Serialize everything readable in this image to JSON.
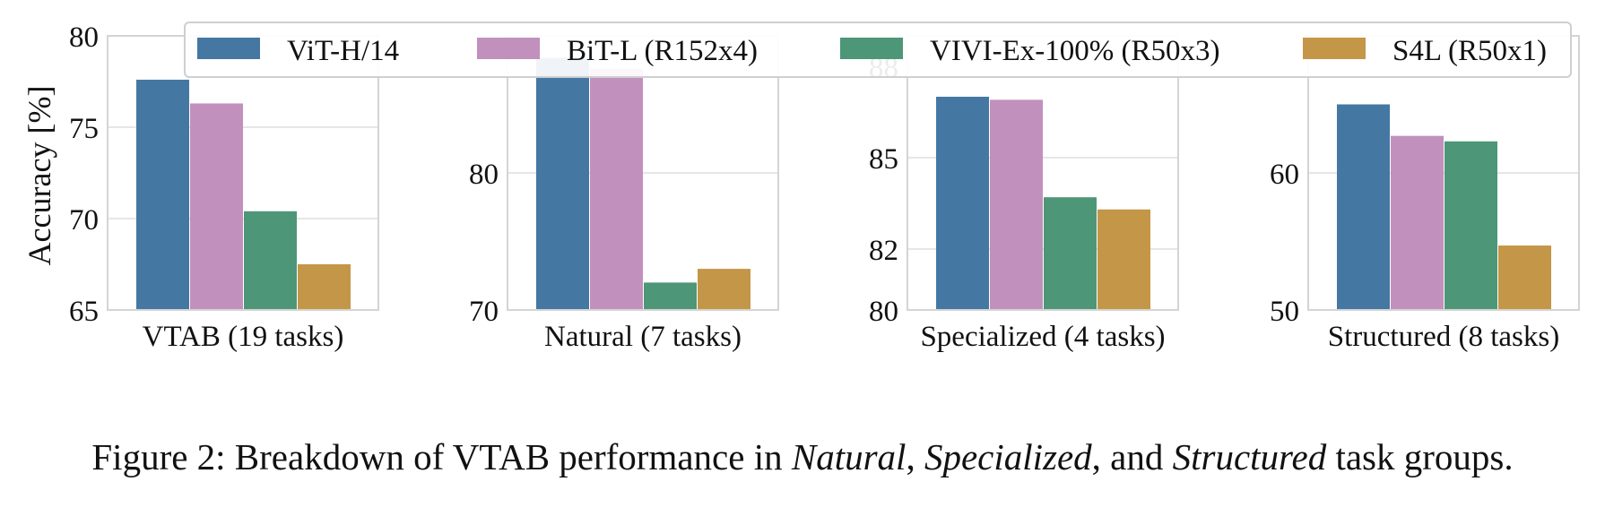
{
  "figure": {
    "ylabel": "Accuracy [%]",
    "caption": {
      "prefix": "Figure 2: Breakdown of VTAB performance in ",
      "em1": "Natural",
      "sep1": ", ",
      "em2": "Specialized",
      "sep2": ", and ",
      "em3": "Structured",
      "suffix": " task groups."
    },
    "colors": {
      "ViT-H/14": "#4478a3",
      "BiT-L (R152x4)": "#c190bc",
      "VIVI-Ex-100% (R50x3)": "#4d9677",
      "S4L (R50x1)": "#c49648"
    },
    "legend_placement": "top, spanning panels"
  },
  "chart_data": [
    {
      "type": "bar",
      "xlabel": "VTAB (19 tasks)",
      "ylabel": "Accuracy [%]",
      "ylim": [
        65,
        80
      ],
      "yticks": [
        65,
        70,
        75,
        80
      ],
      "grid": true,
      "series": [
        {
          "name": "ViT-H/14",
          "values": [
            77.6
          ]
        },
        {
          "name": "BiT-L (R152x4)",
          "values": [
            76.3
          ]
        },
        {
          "name": "VIVI-Ex-100% (R50x3)",
          "values": [
            70.4
          ]
        },
        {
          "name": "S4L (R50x1)",
          "values": [
            67.5
          ]
        }
      ]
    },
    {
      "type": "bar",
      "xlabel": "Natural (7 tasks)",
      "ylim": [
        70,
        90
      ],
      "yticks": [
        70,
        80
      ],
      "grid": true,
      "series": [
        {
          "name": "ViT-H/14",
          "values": [
            88.4
          ]
        },
        {
          "name": "BiT-L (R152x4)",
          "values": [
            87.6
          ]
        },
        {
          "name": "VIVI-Ex-100% (R50x3)",
          "values": [
            72.0
          ]
        },
        {
          "name": "S4L (R50x1)",
          "values": [
            73.0
          ]
        }
      ]
    },
    {
      "type": "bar",
      "xlabel": "Specialized (4 tasks)",
      "ylim": [
        80,
        89
      ],
      "yticks": [
        80,
        82,
        85,
        88
      ],
      "grid": true,
      "series": [
        {
          "name": "ViT-H/14",
          "values": [
            87.0
          ]
        },
        {
          "name": "BiT-L (R152x4)",
          "values": [
            86.9
          ]
        },
        {
          "name": "VIVI-Ex-100% (R50x3)",
          "values": [
            83.7
          ]
        },
        {
          "name": "S4L (R50x1)",
          "values": [
            83.3
          ]
        }
      ]
    },
    {
      "type": "bar",
      "xlabel": "Structured (8 tasks)",
      "ylim": [
        50,
        70
      ],
      "yticks": [
        50,
        60
      ],
      "grid": true,
      "series": [
        {
          "name": "ViT-H/14",
          "values": [
            65.0
          ]
        },
        {
          "name": "BiT-L (R152x4)",
          "values": [
            62.7
          ]
        },
        {
          "name": "VIVI-Ex-100% (R50x3)",
          "values": [
            62.3
          ]
        },
        {
          "name": "S4L (R50x1)",
          "values": [
            54.7
          ]
        }
      ]
    }
  ]
}
